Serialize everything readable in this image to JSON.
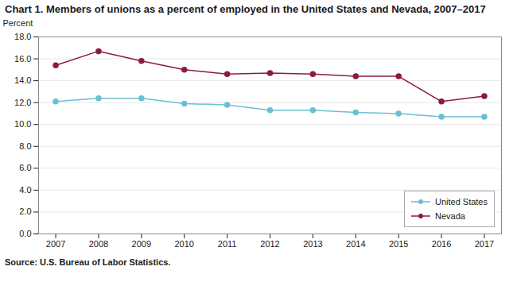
{
  "chart_data": {
    "type": "line",
    "title": "Chart 1. Members of unions as a percent of employed in the United States and Nevada, 2007–2017",
    "ylabel": "Percent",
    "source": "Source: U.S. Bureau of Labor Statistics.",
    "x": [
      2007,
      2008,
      2009,
      2010,
      2011,
      2012,
      2013,
      2014,
      2015,
      2016,
      2017
    ],
    "series": [
      {
        "name": "United States",
        "color": "#6BBFD4",
        "marker": "circle",
        "values": [
          12.1,
          12.4,
          12.4,
          11.9,
          11.8,
          11.3,
          11.3,
          11.1,
          11.0,
          10.7,
          10.7
        ]
      },
      {
        "name": "Nevada",
        "color": "#8B1A4A",
        "marker": "circle",
        "values": [
          15.4,
          16.7,
          15.8,
          15.0,
          14.6,
          14.7,
          14.6,
          14.4,
          14.4,
          12.1,
          12.6
        ]
      }
    ],
    "xlim": [
      2006.6,
      2017.4
    ],
    "xticks": [
      2007,
      2008,
      2009,
      2010,
      2011,
      2012,
      2013,
      2014,
      2015,
      2016,
      2017
    ],
    "ylim": [
      0.0,
      18.0
    ],
    "yticks": [
      {
        "value": 0,
        "label": "0.0"
      },
      {
        "value": 2,
        "label": "2.0"
      },
      {
        "value": 4,
        "label": "4.0"
      },
      {
        "value": 6,
        "label": "6.0"
      },
      {
        "value": 8,
        "label": "8.0"
      },
      {
        "value": 10,
        "label": "10.0"
      },
      {
        "value": 12,
        "label": "12.0"
      },
      {
        "value": 14,
        "label": "14.0"
      },
      {
        "value": 16,
        "label": "16.0"
      },
      {
        "value": 18,
        "label": "18.0"
      }
    ],
    "grid": "y",
    "legend": "lower right"
  }
}
